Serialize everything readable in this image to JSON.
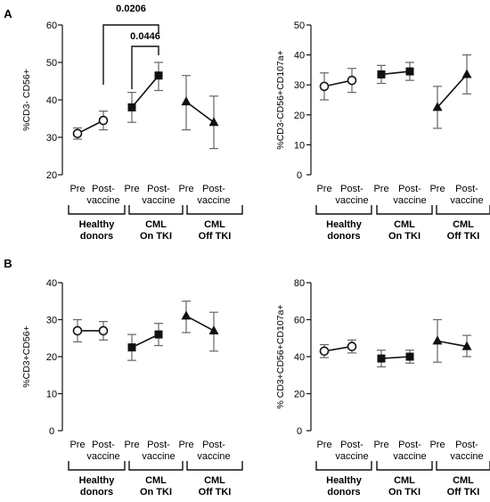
{
  "figure": {
    "panel_labels": [
      "A",
      "B"
    ],
    "groups": [
      "Healthy donors",
      "CML On TKI",
      "CML Off TKI"
    ],
    "group_lines": [
      [
        "Healthy",
        "donors"
      ],
      [
        "CML",
        "On TKI"
      ],
      [
        "CML",
        "Off TKI"
      ]
    ],
    "conditions": [
      "Pre",
      "Post-vaccine"
    ],
    "condition_lines": [
      [
        "Pre"
      ],
      [
        "Post-",
        "vaccine"
      ]
    ],
    "colors": {
      "ink": "#111111",
      "error_bar": "#666666",
      "open_marker_fill": "#ffffff"
    }
  },
  "chart_data": [
    {
      "id": "A-left",
      "type": "scatter",
      "ylabel": "%CD3- CD56+",
      "ylim": [
        20,
        60
      ],
      "yticks": [
        20,
        30,
        40,
        50,
        60
      ],
      "series": [
        {
          "group": "Healthy donors",
          "marker": "circle-open",
          "values": [
            31,
            34.5
          ],
          "err_low": [
            29.5,
            32
          ],
          "err_high": [
            32.5,
            37
          ]
        },
        {
          "group": "CML On TKI",
          "marker": "square",
          "values": [
            38,
            46.5
          ],
          "err_low": [
            34,
            42.5
          ],
          "err_high": [
            42,
            50
          ]
        },
        {
          "group": "CML Off TKI",
          "marker": "triangle",
          "values": [
            39.5,
            34
          ],
          "err_low": [
            32,
            27
          ],
          "err_high": [
            46.5,
            41
          ]
        }
      ],
      "annotations": [
        "0.0206",
        "0.0446"
      ]
    },
    {
      "id": "A-right",
      "type": "scatter",
      "ylabel": "%CD3-CD56+CD107a+",
      "ylim": [
        0,
        50
      ],
      "yticks": [
        0,
        10,
        20,
        30,
        40,
        50
      ],
      "series": [
        {
          "group": "Healthy donors",
          "marker": "circle-open",
          "values": [
            29.5,
            31.5
          ],
          "err_low": [
            25,
            27.5
          ],
          "err_high": [
            34,
            35.5
          ]
        },
        {
          "group": "CML On TKI",
          "marker": "square",
          "values": [
            33.5,
            34.5
          ],
          "err_low": [
            30.5,
            31.5
          ],
          "err_high": [
            36.5,
            37.5
          ]
        },
        {
          "group": "CML Off TKI",
          "marker": "triangle",
          "values": [
            22.5,
            33.5
          ],
          "err_low": [
            15.5,
            27
          ],
          "err_high": [
            29.5,
            40
          ]
        }
      ]
    },
    {
      "id": "B-left",
      "type": "scatter",
      "ylabel": "%CD3+CD56+",
      "ylim": [
        0,
        40
      ],
      "yticks": [
        0,
        10,
        20,
        30,
        40
      ],
      "series": [
        {
          "group": "Healthy donors",
          "marker": "circle-open",
          "values": [
            27,
            27
          ],
          "err_low": [
            24,
            24.5
          ],
          "err_high": [
            30,
            29.5
          ]
        },
        {
          "group": "CML On TKI",
          "marker": "square",
          "values": [
            22.5,
            26
          ],
          "err_low": [
            19,
            23
          ],
          "err_high": [
            26,
            29
          ]
        },
        {
          "group": "CML Off TKI",
          "marker": "triangle",
          "values": [
            31,
            27
          ],
          "err_low": [
            26.5,
            21.5
          ],
          "err_high": [
            35,
            32
          ]
        }
      ]
    },
    {
      "id": "B-right",
      "type": "scatter",
      "ylabel": "% CD3+CD56+CD107a+",
      "ylim": [
        0,
        80
      ],
      "yticks": [
        0,
        20,
        40,
        60,
        80
      ],
      "series": [
        {
          "group": "Healthy donors",
          "marker": "circle-open",
          "values": [
            43,
            45.5
          ],
          "err_low": [
            39.5,
            42
          ],
          "err_high": [
            46.5,
            49
          ]
        },
        {
          "group": "CML On TKI",
          "marker": "square",
          "values": [
            39,
            40
          ],
          "err_low": [
            34.5,
            36.5
          ],
          "err_high": [
            43.5,
            43.5
          ]
        },
        {
          "group": "CML Off TKI",
          "marker": "triangle",
          "values": [
            48.5,
            45.5
          ],
          "err_low": [
            37,
            40
          ],
          "err_high": [
            60,
            51.5
          ]
        }
      ]
    }
  ]
}
